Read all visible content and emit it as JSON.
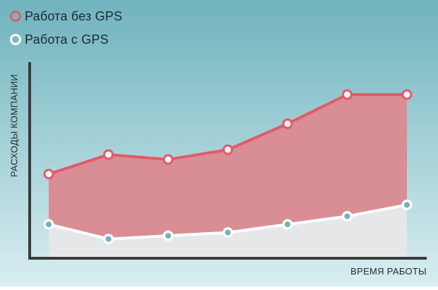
{
  "chart_data": {
    "type": "area",
    "categories": [
      "",
      "",
      "",
      "",
      "",
      "",
      ""
    ],
    "series": [
      {
        "name": "Работа без GPS",
        "values": [
          51,
          63,
          60,
          66,
          82,
          100,
          100
        ],
        "color": "#e15b6b"
      },
      {
        "name": "Работа с GPS",
        "values": [
          20,
          11,
          13,
          15,
          20,
          25,
          32
        ],
        "color": "#ffffff"
      }
    ],
    "title": "",
    "xlabel": "ВРЕМЯ РАБОТЫ",
    "ylabel": "РАСХОДЫ КОМПАНИИ",
    "ylim": [
      0,
      120
    ],
    "grid": false,
    "legend_position": "top-left"
  },
  "colors": {
    "background_top": "#6fb3bd",
    "background_bottom": "#d9eef1",
    "series1_fill": "#d98d94",
    "series1_line": "#e15b6b",
    "series2_fill": "#e6e7e8",
    "series2_line": "#ffffff",
    "axis": "#3a3a3a"
  },
  "legend": {
    "items": [
      {
        "label": "Работа без GPS",
        "icon": "ring-icon",
        "color": "#e15b6b"
      },
      {
        "label": "Работа с GPS",
        "icon": "ring-icon",
        "color": "#ffffff"
      }
    ]
  }
}
